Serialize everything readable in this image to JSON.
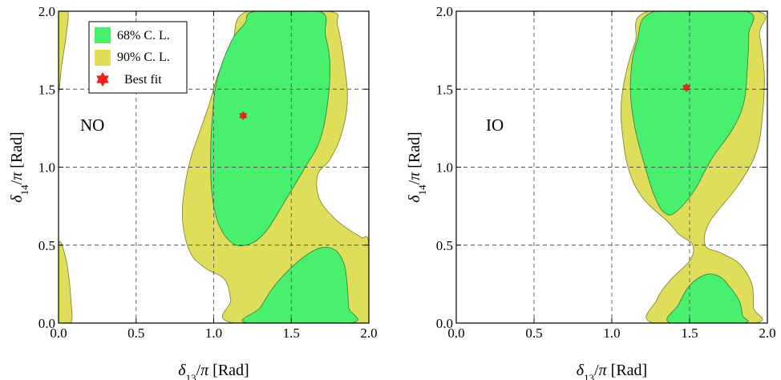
{
  "chart_data": [
    {
      "type": "contour",
      "panel_label": "NO",
      "xlabel": {
        "symbol": "δ",
        "sub": "13",
        "rest": "/π [Rad]"
      },
      "ylabel": {
        "symbol": "δ",
        "sub": "14",
        "rest": "/π [Rad]"
      },
      "xlim": [
        0,
        2.0
      ],
      "ylim": [
        0,
        2.0
      ],
      "xticks": [
        "0.0",
        "0.5",
        "1.0",
        "1.5",
        "2.0"
      ],
      "yticks": [
        "0.0",
        "0.5",
        "1.0",
        "1.5",
        "2.0"
      ],
      "grid": true,
      "best_fit": {
        "x": 1.19,
        "y": 1.33
      },
      "contours_90": [
        [
          [
            0.0,
            1.5
          ],
          [
            0.0,
            2.0
          ],
          [
            0.06,
            2.0
          ],
          [
            0.05,
            1.85
          ],
          [
            0.02,
            1.65
          ]
        ],
        [
          [
            0.0,
            0.0
          ],
          [
            0.0,
            0.5
          ],
          [
            0.05,
            0.4
          ],
          [
            0.08,
            0.15
          ],
          [
            0.08,
            0.0
          ]
        ],
        [
          [
            1.13,
            0.0
          ],
          [
            1.11,
            0.15
          ],
          [
            1.07,
            0.28
          ],
          [
            0.95,
            0.35
          ],
          [
            0.85,
            0.45
          ],
          [
            0.8,
            0.65
          ],
          [
            0.81,
            0.85
          ],
          [
            0.85,
            1.05
          ],
          [
            0.9,
            1.2
          ],
          [
            0.97,
            1.4
          ],
          [
            1.03,
            1.6
          ],
          [
            1.12,
            1.8
          ],
          [
            1.22,
            2.0
          ],
          [
            1.74,
            2.0
          ],
          [
            1.8,
            1.9
          ],
          [
            1.85,
            1.6
          ],
          [
            1.86,
            1.4
          ],
          [
            1.82,
            1.2
          ],
          [
            1.75,
            1.05
          ],
          [
            1.67,
            0.95
          ],
          [
            1.68,
            0.8
          ],
          [
            1.77,
            0.68
          ],
          [
            1.87,
            0.6
          ],
          [
            1.95,
            0.55
          ],
          [
            2.0,
            0.5
          ],
          [
            2.0,
            0.0
          ]
        ]
      ],
      "contours_68": [
        [
          [
            1.27,
            2.0
          ],
          [
            1.2,
            1.92
          ],
          [
            1.11,
            1.8
          ],
          [
            1.02,
            1.55
          ],
          [
            0.99,
            1.3
          ],
          [
            0.98,
            1.05
          ],
          [
            0.99,
            0.82
          ],
          [
            1.03,
            0.64
          ],
          [
            1.11,
            0.52
          ],
          [
            1.21,
            0.5
          ],
          [
            1.33,
            0.58
          ],
          [
            1.47,
            0.8
          ],
          [
            1.59,
            1.0
          ],
          [
            1.68,
            1.16
          ],
          [
            1.73,
            1.38
          ],
          [
            1.75,
            1.65
          ],
          [
            1.72,
            1.85
          ],
          [
            1.68,
            2.0
          ]
        ],
        [
          [
            1.22,
            0.0
          ],
          [
            1.3,
            0.1
          ],
          [
            1.4,
            0.25
          ],
          [
            1.55,
            0.4
          ],
          [
            1.68,
            0.48
          ],
          [
            1.78,
            0.47
          ],
          [
            1.84,
            0.38
          ],
          [
            1.86,
            0.25
          ],
          [
            1.87,
            0.1
          ],
          [
            1.88,
            0.0
          ]
        ]
      ]
    },
    {
      "type": "contour",
      "panel_label": "IO",
      "xlabel": {
        "symbol": "δ",
        "sub": "13",
        "rest": "/π [Rad]"
      },
      "ylabel": {
        "symbol": "δ",
        "sub": "14",
        "rest": "/π [Rad]"
      },
      "xlim": [
        0,
        2.0
      ],
      "ylim": [
        0,
        2.0
      ],
      "xticks": [
        "0.0",
        "0.5",
        "1.0",
        "1.5",
        "2.0"
      ],
      "yticks": [
        "0.0",
        "0.5",
        "1.0",
        "1.5",
        "2.0"
      ],
      "grid": true,
      "best_fit": {
        "x": 1.48,
        "y": 1.51
      },
      "contours_90": [
        [
          [
            1.27,
            0.0
          ],
          [
            1.29,
            0.15
          ],
          [
            1.38,
            0.28
          ],
          [
            1.5,
            0.4
          ],
          [
            1.52,
            0.5
          ],
          [
            1.43,
            0.57
          ],
          [
            1.36,
            0.65
          ],
          [
            1.2,
            0.8
          ],
          [
            1.11,
            0.98
          ],
          [
            1.07,
            1.2
          ],
          [
            1.06,
            1.4
          ],
          [
            1.09,
            1.6
          ],
          [
            1.15,
            1.8
          ],
          [
            1.24,
            2.0
          ],
          [
            1.93,
            2.0
          ],
          [
            1.95,
            1.85
          ],
          [
            1.98,
            1.6
          ],
          [
            1.97,
            1.35
          ],
          [
            1.93,
            1.1
          ],
          [
            1.81,
            0.88
          ],
          [
            1.63,
            0.65
          ],
          [
            1.6,
            0.5
          ],
          [
            1.7,
            0.45
          ],
          [
            1.82,
            0.38
          ],
          [
            1.9,
            0.25
          ],
          [
            1.91,
            0.1
          ],
          [
            1.92,
            0.0
          ]
        ]
      ],
      "contours_68": [
        [
          [
            1.28,
            2.0
          ],
          [
            1.16,
            1.8
          ],
          [
            1.12,
            1.55
          ],
          [
            1.14,
            1.3
          ],
          [
            1.2,
            1.05
          ],
          [
            1.28,
            0.8
          ],
          [
            1.35,
            0.7
          ],
          [
            1.42,
            0.72
          ],
          [
            1.53,
            0.85
          ],
          [
            1.64,
            1.05
          ],
          [
            1.78,
            1.25
          ],
          [
            1.85,
            1.42
          ],
          [
            1.87,
            1.62
          ],
          [
            1.88,
            1.85
          ],
          [
            1.86,
            2.0
          ]
        ],
        [
          [
            1.38,
            0.0
          ],
          [
            1.43,
            0.12
          ],
          [
            1.5,
            0.24
          ],
          [
            1.6,
            0.31
          ],
          [
            1.69,
            0.3
          ],
          [
            1.76,
            0.23
          ],
          [
            1.82,
            0.14
          ],
          [
            1.84,
            0.05
          ],
          [
            1.84,
            0.0
          ]
        ]
      ]
    }
  ],
  "legend": {
    "items": [
      {
        "label": "68% C. L.",
        "color": "#48f06e"
      },
      {
        "label": "90% C. L.",
        "color": "#dede5a"
      },
      {
        "label": "Best fit",
        "color": "#ff1a1a"
      }
    ]
  }
}
